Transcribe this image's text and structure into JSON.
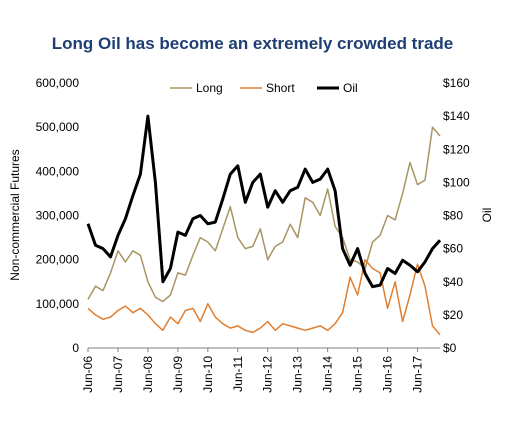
{
  "chart_data": {
    "type": "line",
    "title": "Long Oil has become an extremely crowded trade",
    "ylabel_left": "Non-commercial Futures",
    "ylabel_right": "Oil",
    "ylim_left": [
      0,
      600000
    ],
    "ylim_right": [
      0,
      160
    ],
    "yticks_left": [
      "0",
      "100,000",
      "200,000",
      "300,000",
      "400,000",
      "500,000",
      "600,000"
    ],
    "yticks_right": [
      "$0",
      "$20",
      "$40",
      "$60",
      "$80",
      "$100",
      "$120",
      "$140",
      "$160"
    ],
    "xticks": [
      "Jun-06",
      "Jun-07",
      "Jun-08",
      "Jun-09",
      "Jun-10",
      "Jun-11",
      "Jun-12",
      "Jun-13",
      "Jun-14",
      "Jun-15",
      "Jun-16",
      "Jun-17"
    ],
    "x_start": "2006-06",
    "x_end": "2018-03",
    "legend": {
      "position": "top-center"
    },
    "colors": {
      "long": "#a89563",
      "short": "#e07f30",
      "oil": "#000000",
      "title": "#1f3f73"
    },
    "series": [
      {
        "name": "Long",
        "axis": "left",
        "x": [
          "2006-06",
          "2006-09",
          "2006-12",
          "2007-03",
          "2007-06",
          "2007-09",
          "2007-12",
          "2008-03",
          "2008-06",
          "2008-09",
          "2008-12",
          "2009-03",
          "2009-06",
          "2009-09",
          "2009-12",
          "2010-03",
          "2010-06",
          "2010-09",
          "2010-12",
          "2011-03",
          "2011-06",
          "2011-09",
          "2011-12",
          "2012-03",
          "2012-06",
          "2012-09",
          "2012-12",
          "2013-03",
          "2013-06",
          "2013-09",
          "2013-12",
          "2014-03",
          "2014-06",
          "2014-09",
          "2014-12",
          "2015-03",
          "2015-06",
          "2015-09",
          "2015-12",
          "2016-03",
          "2016-06",
          "2016-09",
          "2016-12",
          "2017-03",
          "2017-06",
          "2017-09",
          "2017-12",
          "2018-03"
        ],
        "values": [
          110000,
          140000,
          130000,
          170000,
          220000,
          195000,
          220000,
          210000,
          150000,
          115000,
          105000,
          120000,
          170000,
          165000,
          210000,
          250000,
          240000,
          220000,
          270000,
          320000,
          250000,
          225000,
          230000,
          270000,
          200000,
          230000,
          240000,
          280000,
          250000,
          340000,
          330000,
          300000,
          360000,
          275000,
          250000,
          200000,
          195000,
          180000,
          240000,
          255000,
          300000,
          290000,
          350000,
          420000,
          370000,
          380000,
          500000,
          480000
        ]
      },
      {
        "name": "Short",
        "axis": "left",
        "x": [
          "2006-06",
          "2006-09",
          "2006-12",
          "2007-03",
          "2007-06",
          "2007-09",
          "2007-12",
          "2008-03",
          "2008-06",
          "2008-09",
          "2008-12",
          "2009-03",
          "2009-06",
          "2009-09",
          "2009-12",
          "2010-03",
          "2010-06",
          "2010-09",
          "2010-12",
          "2011-03",
          "2011-06",
          "2011-09",
          "2011-12",
          "2012-03",
          "2012-06",
          "2012-09",
          "2012-12",
          "2013-03",
          "2013-06",
          "2013-09",
          "2013-12",
          "2014-03",
          "2014-06",
          "2014-09",
          "2014-12",
          "2015-03",
          "2015-06",
          "2015-09",
          "2015-12",
          "2016-03",
          "2016-06",
          "2016-09",
          "2016-12",
          "2017-03",
          "2017-06",
          "2017-09",
          "2017-12",
          "2018-03"
        ],
        "values": [
          90000,
          75000,
          65000,
          70000,
          85000,
          95000,
          80000,
          90000,
          75000,
          55000,
          40000,
          70000,
          55000,
          85000,
          90000,
          60000,
          100000,
          70000,
          55000,
          45000,
          50000,
          40000,
          35000,
          45000,
          60000,
          40000,
          55000,
          50000,
          45000,
          40000,
          45000,
          50000,
          40000,
          55000,
          80000,
          160000,
          120000,
          200000,
          180000,
          170000,
          90000,
          150000,
          60000,
          120000,
          190000,
          140000,
          50000,
          30000
        ]
      },
      {
        "name": "Oil",
        "axis": "right",
        "x": [
          "2006-06",
          "2006-09",
          "2006-12",
          "2007-03",
          "2007-06",
          "2007-09",
          "2007-12",
          "2008-03",
          "2008-06",
          "2008-09",
          "2008-12",
          "2009-03",
          "2009-06",
          "2009-09",
          "2009-12",
          "2010-03",
          "2010-06",
          "2010-09",
          "2010-12",
          "2011-03",
          "2011-06",
          "2011-09",
          "2011-12",
          "2012-03",
          "2012-06",
          "2012-09",
          "2012-12",
          "2013-03",
          "2013-06",
          "2013-09",
          "2013-12",
          "2014-03",
          "2014-06",
          "2014-09",
          "2014-12",
          "2015-03",
          "2015-06",
          "2015-09",
          "2015-12",
          "2016-03",
          "2016-06",
          "2016-09",
          "2016-12",
          "2017-03",
          "2017-06",
          "2017-09",
          "2017-12",
          "2018-03"
        ],
        "values": [
          75,
          62,
          60,
          55,
          68,
          78,
          92,
          105,
          140,
          100,
          40,
          48,
          70,
          68,
          78,
          80,
          75,
          76,
          90,
          105,
          110,
          88,
          100,
          105,
          85,
          95,
          88,
          95,
          97,
          108,
          100,
          102,
          108,
          95,
          60,
          50,
          60,
          45,
          37,
          38,
          48,
          45,
          53,
          50,
          46,
          52,
          60,
          65
        ]
      }
    ]
  }
}
